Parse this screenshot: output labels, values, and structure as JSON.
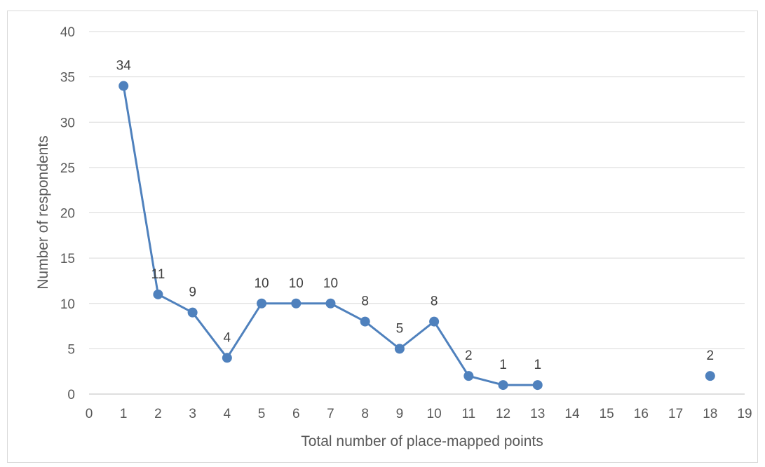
{
  "chart_data": {
    "type": "line",
    "xlabel": "Total number of place-mapped points",
    "ylabel": "Number of respondents",
    "xlim": [
      0,
      19
    ],
    "ylim": [
      0,
      40
    ],
    "x_ticks": [
      "0",
      "1",
      "2",
      "3",
      "4",
      "5",
      "6",
      "7",
      "8",
      "9",
      "10",
      "11",
      "12",
      "13",
      "14",
      "15",
      "16",
      "17",
      "18",
      "19"
    ],
    "y_ticks": [
      "0",
      "5",
      "10",
      "15",
      "20",
      "25",
      "30",
      "35",
      "40"
    ],
    "grid": "horizontal",
    "color": "#4f81bd",
    "segments": [
      [
        {
          "x": 1,
          "y": 34,
          "label": "34"
        },
        {
          "x": 2,
          "y": 11,
          "label": "11"
        },
        {
          "x": 3,
          "y": 9,
          "label": "9"
        },
        {
          "x": 4,
          "y": 4,
          "label": "4"
        },
        {
          "x": 5,
          "y": 10,
          "label": "10"
        },
        {
          "x": 6,
          "y": 10,
          "label": "10"
        },
        {
          "x": 7,
          "y": 10,
          "label": "10"
        },
        {
          "x": 8,
          "y": 8,
          "label": "8"
        },
        {
          "x": 9,
          "y": 5,
          "label": "5"
        },
        {
          "x": 10,
          "y": 8,
          "label": "8"
        },
        {
          "x": 11,
          "y": 2,
          "label": "2"
        },
        {
          "x": 12,
          "y": 1,
          "label": "1"
        },
        {
          "x": 13,
          "y": 1,
          "label": "1"
        }
      ],
      [
        {
          "x": 18,
          "y": 2,
          "label": "2"
        }
      ]
    ]
  }
}
